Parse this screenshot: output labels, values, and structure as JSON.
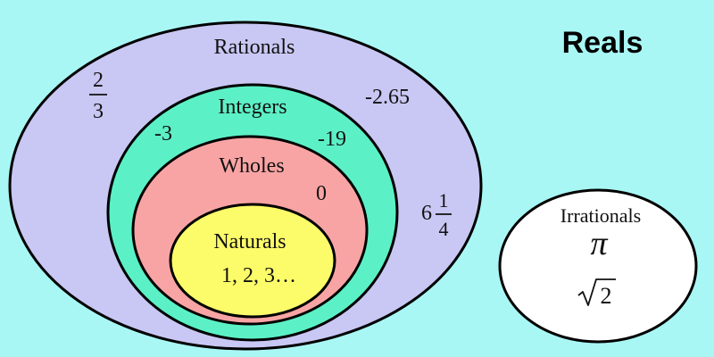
{
  "title": "Reals",
  "colors": {
    "background": "#a9f7f5",
    "rationals": "#c9c7f3",
    "integers": "#5cf0c6",
    "wholes": "#f9a4a4",
    "naturals": "#fcfc6a",
    "irrationals": "#ffffff",
    "outline": "#000000"
  },
  "sets": {
    "rationals": {
      "label": "Rationals",
      "fraction_two_thirds": {
        "numerator": "2",
        "denominator": "3"
      },
      "decimal": "-2.65",
      "mixed": {
        "whole": "6",
        "numerator": "1",
        "denominator": "4"
      }
    },
    "integers": {
      "label": "Integers",
      "neg_three": "-3",
      "neg_nineteen": "-19"
    },
    "wholes": {
      "label": "Wholes",
      "zero": "0"
    },
    "naturals": {
      "label": "Naturals",
      "examples": "1, 2, 3…"
    },
    "irrationals": {
      "label": "Irrationals",
      "pi": "π",
      "sqrt_two_radicand": "2"
    }
  }
}
